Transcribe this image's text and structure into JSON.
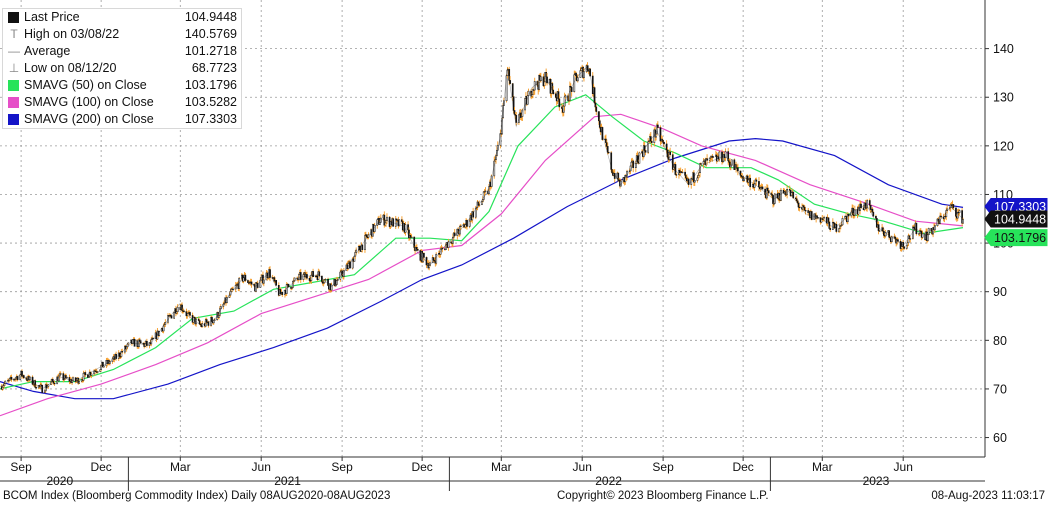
{
  "legend": [
    {
      "label": "Last Price",
      "value": "104.9448",
      "color": "#111111",
      "glyph": "box"
    },
    {
      "label": "High on 03/08/22",
      "value": "140.5769",
      "color": "#888888",
      "glyph": "T"
    },
    {
      "label": "Average",
      "value": "101.2718",
      "color": "#888888",
      "glyph": "—"
    },
    {
      "label": "Low on 08/12/20",
      "value": "68.7723",
      "color": "#888888",
      "glyph": "⊥"
    },
    {
      "label": "SMAVG (50)  on Close",
      "value": "103.1796",
      "color": "#27e35a",
      "glyph": "box"
    },
    {
      "label": "SMAVG (100)  on Close",
      "value": "103.5282",
      "color": "#e64fc8",
      "glyph": "box"
    },
    {
      "label": "SMAVG (200)  on Close",
      "value": "107.3303",
      "color": "#1414c8",
      "glyph": "box"
    }
  ],
  "footer": {
    "left": "BCOM Index (Bloomberg Commodity Index)  Daily 08AUG2020-08AUG2023",
    "center": "Copyright© 2023 Bloomberg Finance L.P.",
    "right": "08-Aug-2023 11:03:17"
  },
  "chart_data": {
    "type": "line",
    "title": "BCOM Index (Bloomberg Commodity Index)",
    "ylim": [
      56,
      150
    ],
    "y_ticks": [
      "60",
      "70",
      "80",
      "90",
      "100",
      "110",
      "120",
      "130",
      "140"
    ],
    "x_range": [
      "2020-08-08",
      "2023-08-08"
    ],
    "month_ticks": [
      {
        "label": "Sep",
        "date": "2020-09-01"
      },
      {
        "label": "Dec",
        "date": "2020-12-01"
      },
      {
        "label": "Mar",
        "date": "2021-03-01"
      },
      {
        "label": "Jun",
        "date": "2021-06-01"
      },
      {
        "label": "Sep",
        "date": "2021-09-01"
      },
      {
        "label": "Dec",
        "date": "2021-12-01"
      },
      {
        "label": "Mar",
        "date": "2022-03-01"
      },
      {
        "label": "Jun",
        "date": "2022-06-01"
      },
      {
        "label": "Sep",
        "date": "2022-09-01"
      },
      {
        "label": "Dec",
        "date": "2022-12-01"
      },
      {
        "label": "Mar",
        "date": "2023-03-01"
      },
      {
        "label": "Jun",
        "date": "2023-06-01"
      }
    ],
    "year_labels": [
      {
        "label": "2020",
        "date": "2020-10-15"
      },
      {
        "label": "2021",
        "date": "2021-07-01"
      },
      {
        "label": "2022",
        "date": "2022-07-01"
      },
      {
        "label": "2023",
        "date": "2023-05-01"
      }
    ],
    "series": [
      {
        "name": "Last Price",
        "color": "#111111",
        "wick_color": "#f59a23",
        "style": "candles",
        "points": [
          [
            "2020-08-08",
            70.5
          ],
          [
            "2020-09-01",
            73.0
          ],
          [
            "2020-09-25",
            70.0
          ],
          [
            "2020-10-15",
            72.5
          ],
          [
            "2020-11-01",
            71.5
          ],
          [
            "2020-11-20",
            73.5
          ],
          [
            "2020-12-15",
            76.0
          ],
          [
            "2021-01-05",
            79.5
          ],
          [
            "2021-01-25",
            79.0
          ],
          [
            "2021-02-10",
            83.0
          ],
          [
            "2021-02-28",
            87.5
          ],
          [
            "2021-03-10",
            85.0
          ],
          [
            "2021-03-25",
            83.0
          ],
          [
            "2021-04-10",
            84.5
          ],
          [
            "2021-04-25",
            89.0
          ],
          [
            "2021-05-12",
            93.0
          ],
          [
            "2021-05-25",
            91.0
          ],
          [
            "2021-06-10",
            94.0
          ],
          [
            "2021-06-22",
            89.5
          ],
          [
            "2021-07-15",
            93.0
          ],
          [
            "2021-08-05",
            93.5
          ],
          [
            "2021-08-20",
            91.0
          ],
          [
            "2021-09-05",
            94.5
          ],
          [
            "2021-09-25",
            100.0
          ],
          [
            "2021-10-15",
            105.0
          ],
          [
            "2021-11-10",
            103.5
          ],
          [
            "2021-11-26",
            98.0
          ],
          [
            "2021-12-10",
            95.5
          ],
          [
            "2021-12-25",
            99.0
          ],
          [
            "2022-01-20",
            104.0
          ],
          [
            "2022-02-15",
            111.0
          ],
          [
            "2022-02-28",
            122.0
          ],
          [
            "2022-03-08",
            136.0
          ],
          [
            "2022-03-18",
            124.0
          ],
          [
            "2022-04-05",
            132.0
          ],
          [
            "2022-04-20",
            134.0
          ],
          [
            "2022-05-10",
            128.0
          ],
          [
            "2022-05-25",
            134.0
          ],
          [
            "2022-06-08",
            136.5
          ],
          [
            "2022-06-20",
            125.0
          ],
          [
            "2022-07-05",
            115.0
          ],
          [
            "2022-07-15",
            112.0
          ],
          [
            "2022-08-05",
            118.0
          ],
          [
            "2022-08-25",
            123.0
          ],
          [
            "2022-09-15",
            115.0
          ],
          [
            "2022-09-30",
            112.0
          ],
          [
            "2022-10-15",
            116.0
          ],
          [
            "2022-11-10",
            118.0
          ],
          [
            "2022-11-28",
            114.0
          ],
          [
            "2022-12-15",
            112.0
          ],
          [
            "2023-01-05",
            109.0
          ],
          [
            "2023-01-20",
            111.0
          ],
          [
            "2023-02-10",
            106.0
          ],
          [
            "2023-03-01",
            105.0
          ],
          [
            "2023-03-15",
            103.0
          ],
          [
            "2023-04-05",
            106.5
          ],
          [
            "2023-04-20",
            108.0
          ],
          [
            "2023-05-05",
            103.0
          ],
          [
            "2023-05-25",
            100.5
          ],
          [
            "2023-06-01",
            99.5
          ],
          [
            "2023-06-15",
            103.0
          ],
          [
            "2023-06-28",
            101.5
          ],
          [
            "2023-07-10",
            104.0
          ],
          [
            "2023-07-25",
            107.5
          ],
          [
            "2023-08-08",
            104.9448
          ]
        ]
      },
      {
        "name": "SMAVG (50)",
        "color": "#27e35a",
        "style": "line",
        "points": [
          [
            "2020-08-08",
            70.0
          ],
          [
            "2020-09-15",
            71.5
          ],
          [
            "2020-11-01",
            71.5
          ],
          [
            "2020-12-15",
            74.0
          ],
          [
            "2021-02-01",
            78.5
          ],
          [
            "2021-03-15",
            84.5
          ],
          [
            "2021-05-01",
            86.0
          ],
          [
            "2021-06-15",
            90.5
          ],
          [
            "2021-08-01",
            92.0
          ],
          [
            "2021-09-15",
            93.5
          ],
          [
            "2021-11-01",
            101.0
          ],
          [
            "2021-12-10",
            101.0
          ],
          [
            "2022-01-15",
            100.5
          ],
          [
            "2022-02-15",
            106.5
          ],
          [
            "2022-03-20",
            120.0
          ],
          [
            "2022-05-01",
            128.0
          ],
          [
            "2022-06-05",
            130.5
          ],
          [
            "2022-07-05",
            126.0
          ],
          [
            "2022-08-10",
            121.0
          ],
          [
            "2022-09-15",
            118.5
          ],
          [
            "2022-10-20",
            115.5
          ],
          [
            "2022-12-10",
            115.5
          ],
          [
            "2023-01-10",
            113.0
          ],
          [
            "2023-02-20",
            108.0
          ],
          [
            "2023-04-01",
            106.0
          ],
          [
            "2023-05-10",
            104.5
          ],
          [
            "2023-06-25",
            102.0
          ],
          [
            "2023-08-08",
            103.1796
          ]
        ]
      },
      {
        "name": "SMAVG (100)",
        "color": "#e64fc8",
        "style": "line",
        "points": [
          [
            "2020-08-08",
            64.5
          ],
          [
            "2020-10-01",
            68.0
          ],
          [
            "2020-12-01",
            71.0
          ],
          [
            "2021-02-01",
            75.0
          ],
          [
            "2021-04-01",
            79.5
          ],
          [
            "2021-06-01",
            85.5
          ],
          [
            "2021-08-01",
            89.0
          ],
          [
            "2021-10-01",
            92.5
          ],
          [
            "2021-12-01",
            98.5
          ],
          [
            "2022-01-15",
            99.5
          ],
          [
            "2022-03-01",
            106.0
          ],
          [
            "2022-04-20",
            117.0
          ],
          [
            "2022-06-15",
            126.0
          ],
          [
            "2022-07-15",
            126.5
          ],
          [
            "2022-09-01",
            123.5
          ],
          [
            "2022-10-15",
            120.0
          ],
          [
            "2022-12-15",
            117.0
          ],
          [
            "2023-02-15",
            112.0
          ],
          [
            "2023-04-15",
            108.5
          ],
          [
            "2023-06-15",
            104.5
          ],
          [
            "2023-08-08",
            103.5282
          ]
        ]
      },
      {
        "name": "SMAVG (200)",
        "color": "#1414c8",
        "style": "line",
        "points": [
          [
            "2020-08-08",
            71.5
          ],
          [
            "2020-09-15",
            69.5
          ],
          [
            "2020-11-01",
            68.0
          ],
          [
            "2020-12-15",
            68.0
          ],
          [
            "2021-02-15",
            71.0
          ],
          [
            "2021-04-15",
            75.0
          ],
          [
            "2021-06-15",
            78.5
          ],
          [
            "2021-08-15",
            82.5
          ],
          [
            "2021-10-15",
            88.0
          ],
          [
            "2021-12-01",
            92.5
          ],
          [
            "2022-01-15",
            95.5
          ],
          [
            "2022-03-15",
            101.0
          ],
          [
            "2022-05-15",
            107.5
          ],
          [
            "2022-07-15",
            113.0
          ],
          [
            "2022-09-15",
            117.5
          ],
          [
            "2022-11-15",
            121.0
          ],
          [
            "2022-12-15",
            121.5
          ],
          [
            "2023-01-15",
            121.0
          ],
          [
            "2023-03-15",
            118.0
          ],
          [
            "2023-05-15",
            112.0
          ],
          [
            "2023-07-15",
            108.0
          ],
          [
            "2023-08-08",
            107.3303
          ]
        ]
      }
    ],
    "markers": [
      {
        "label": "107.3303",
        "value": 107.3303,
        "bg": "#1414c8",
        "fg": "#ffffff"
      },
      {
        "label": "103.1796",
        "value": 103.1796,
        "bg": "#27e35a",
        "fg": "#111111"
      },
      {
        "label": "104.9448",
        "value": 104.9448,
        "bg": "#111111",
        "fg": "#ffffff"
      }
    ]
  }
}
